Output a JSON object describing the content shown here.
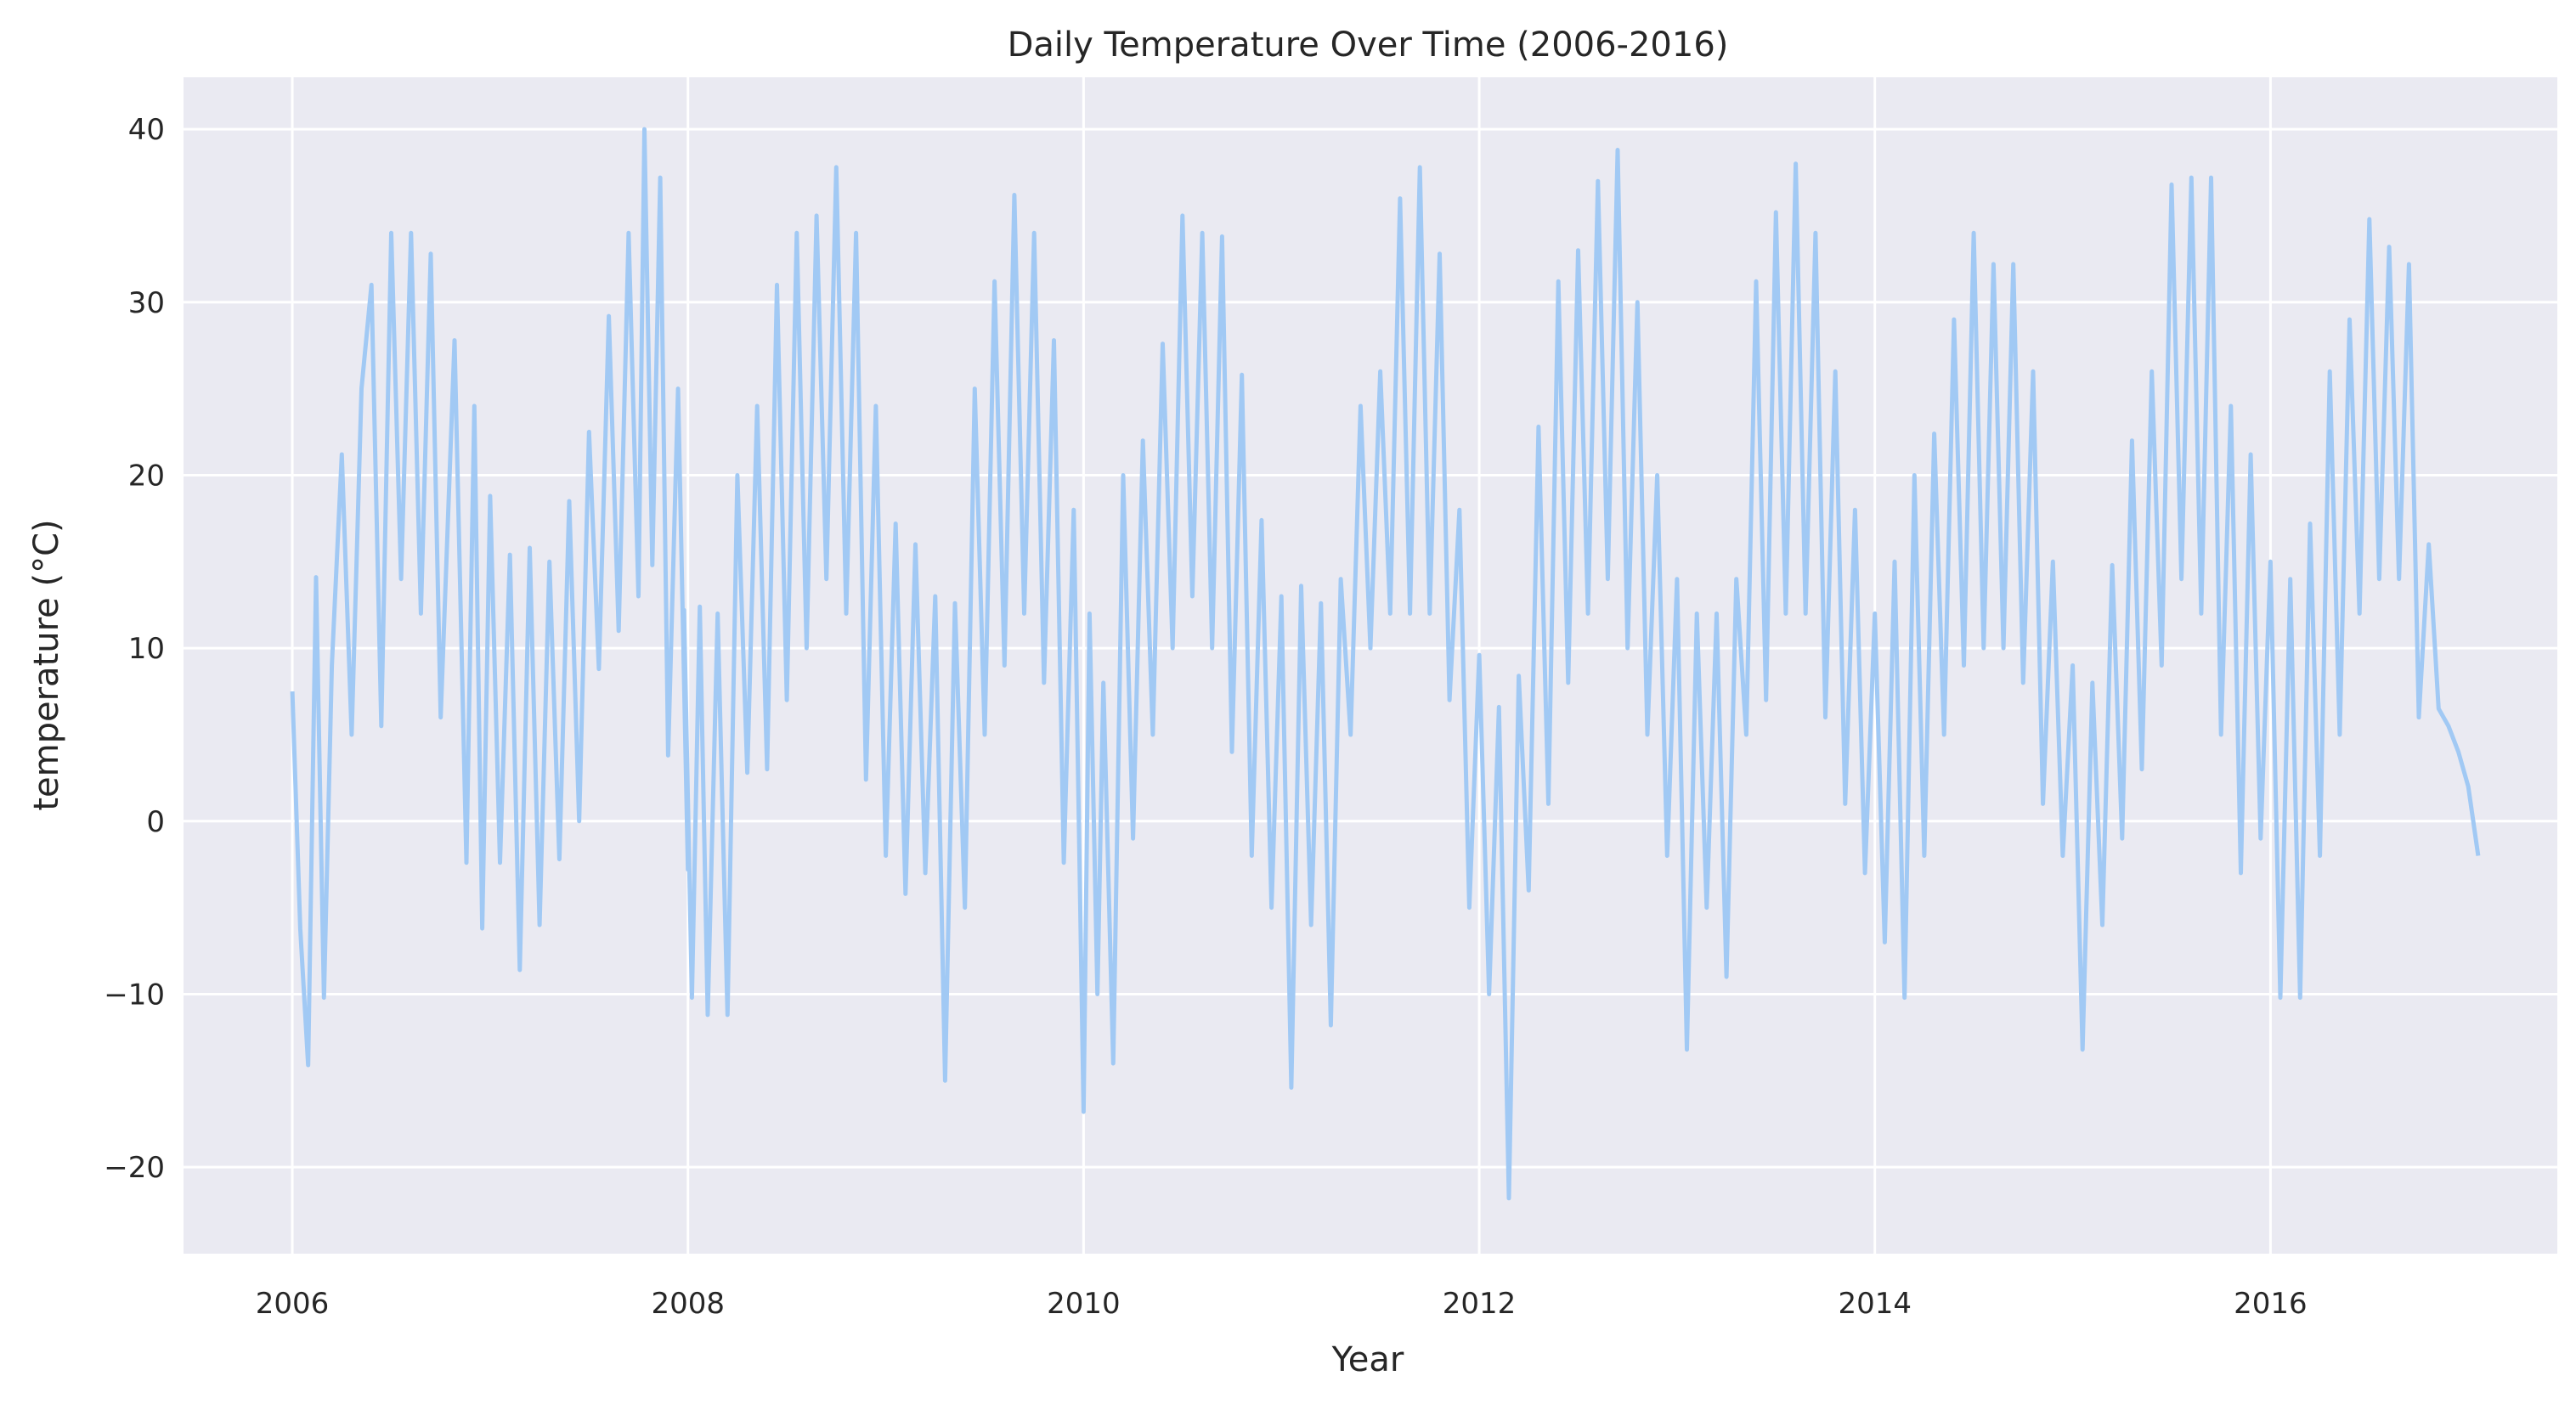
{
  "chart_data": {
    "type": "line",
    "title": "Daily Temperature Over Time (2006-2016)",
    "xlabel": "Year",
    "ylabel": "temperature (°C)",
    "xlim": [
      2005.45,
      2017.45
    ],
    "ylim": [
      -25,
      43
    ],
    "xticks": [
      2006,
      2008,
      2010,
      2012,
      2014,
      2016
    ],
    "xtick_labels": [
      "2006",
      "2008",
      "2010",
      "2012",
      "2014",
      "2016"
    ],
    "yticks": [
      -20,
      -10,
      0,
      10,
      20,
      30,
      40
    ],
    "ytick_labels": [
      "−20",
      "−10",
      "0",
      "10",
      "20",
      "30",
      "40"
    ],
    "grid": true,
    "series": [
      {
        "color": "#a1c9f4",
        "points": [
          [
            2006.0,
            7.5
          ],
          [
            2006.04,
            -6.2
          ],
          [
            2006.08,
            -14.1
          ],
          [
            2006.12,
            14.1
          ],
          [
            2006.16,
            -10.2
          ],
          [
            2006.2,
            9.0
          ],
          [
            2006.25,
            21.2
          ],
          [
            2006.3,
            5.0
          ],
          [
            2006.35,
            25.0
          ],
          [
            2006.4,
            31.0
          ],
          [
            2006.45,
            5.5
          ],
          [
            2006.5,
            34.0
          ],
          [
            2006.55,
            14.0
          ],
          [
            2006.6,
            34.0
          ],
          [
            2006.65,
            12.0
          ],
          [
            2006.7,
            32.8
          ],
          [
            2006.75,
            6.0
          ],
          [
            2006.82,
            27.8
          ],
          [
            2006.88,
            -2.4
          ],
          [
            2006.92,
            24.0
          ],
          [
            2006.96,
            -6.2
          ],
          [
            2007.0,
            18.8
          ],
          [
            2007.05,
            -2.4
          ],
          [
            2007.1,
            15.4
          ],
          [
            2007.15,
            -8.6
          ],
          [
            2007.2,
            15.8
          ],
          [
            2007.25,
            -6.0
          ],
          [
            2007.3,
            15.0
          ],
          [
            2007.35,
            -2.2
          ],
          [
            2007.4,
            18.5
          ],
          [
            2007.45,
            0.0
          ],
          [
            2007.5,
            22.5
          ],
          [
            2007.55,
            8.8
          ],
          [
            2007.6,
            29.2
          ],
          [
            2007.65,
            11.0
          ],
          [
            2007.7,
            34.0
          ],
          [
            2007.75,
            13.0
          ],
          [
            2007.78,
            40.0
          ],
          [
            2007.82,
            14.8
          ],
          [
            2007.86,
            37.2
          ],
          [
            2007.9,
            3.8
          ],
          [
            2007.95,
            25.0
          ],
          [
            2008.0,
            -2.8
          ],
          [
            2007.98,
            12.2
          ],
          [
            2008.02,
            -10.2
          ],
          [
            2008.06,
            12.4
          ],
          [
            2008.1,
            -11.2
          ],
          [
            2008.15,
            12.0
          ],
          [
            2008.2,
            -11.2
          ],
          [
            2008.25,
            20.0
          ],
          [
            2008.3,
            2.8
          ],
          [
            2008.35,
            24.0
          ],
          [
            2008.4,
            3.0
          ],
          [
            2008.45,
            31.0
          ],
          [
            2008.5,
            7.0
          ],
          [
            2008.55,
            34.0
          ],
          [
            2008.6,
            10.0
          ],
          [
            2008.65,
            35.0
          ],
          [
            2008.7,
            14.0
          ],
          [
            2008.75,
            37.8
          ],
          [
            2008.8,
            12.0
          ],
          [
            2008.85,
            34.0
          ],
          [
            2008.9,
            2.4
          ],
          [
            2008.95,
            24.0
          ],
          [
            2009.0,
            -2.0
          ],
          [
            2009.05,
            17.2
          ],
          [
            2009.1,
            -4.2
          ],
          [
            2009.15,
            16.0
          ],
          [
            2009.2,
            -3.0
          ],
          [
            2009.25,
            13.0
          ],
          [
            2009.3,
            -15.0
          ],
          [
            2009.35,
            12.6
          ],
          [
            2009.4,
            -5.0
          ],
          [
            2009.45,
            25.0
          ],
          [
            2009.5,
            5.0
          ],
          [
            2009.55,
            31.2
          ],
          [
            2009.6,
            9.0
          ],
          [
            2009.65,
            36.2
          ],
          [
            2009.7,
            12.0
          ],
          [
            2009.75,
            34.0
          ],
          [
            2009.8,
            8.0
          ],
          [
            2009.85,
            27.8
          ],
          [
            2009.9,
            -2.4
          ],
          [
            2009.95,
            18.0
          ],
          [
            2010.0,
            -16.8
          ],
          [
            2010.03,
            12.0
          ],
          [
            2010.07,
            -10.0
          ],
          [
            2010.1,
            8.0
          ],
          [
            2010.15,
            -14.0
          ],
          [
            2010.2,
            20.0
          ],
          [
            2010.25,
            -1.0
          ],
          [
            2010.3,
            22.0
          ],
          [
            2010.35,
            5.0
          ],
          [
            2010.4,
            27.6
          ],
          [
            2010.45,
            10.0
          ],
          [
            2010.5,
            35.0
          ],
          [
            2010.55,
            13.0
          ],
          [
            2010.6,
            34.0
          ],
          [
            2010.65,
            10.0
          ],
          [
            2010.7,
            33.8
          ],
          [
            2010.75,
            4.0
          ],
          [
            2010.8,
            25.8
          ],
          [
            2010.85,
            -2.0
          ],
          [
            2010.9,
            17.4
          ],
          [
            2010.95,
            -5.0
          ],
          [
            2011.0,
            13.0
          ],
          [
            2011.05,
            -15.4
          ],
          [
            2011.1,
            13.6
          ],
          [
            2011.15,
            -6.0
          ],
          [
            2011.2,
            12.6
          ],
          [
            2011.25,
            -11.8
          ],
          [
            2011.3,
            14.0
          ],
          [
            2011.35,
            5.0
          ],
          [
            2011.4,
            24.0
          ],
          [
            2011.45,
            10.0
          ],
          [
            2011.5,
            26.0
          ],
          [
            2011.55,
            12.0
          ],
          [
            2011.6,
            36.0
          ],
          [
            2011.65,
            12.0
          ],
          [
            2011.7,
            37.8
          ],
          [
            2011.75,
            12.0
          ],
          [
            2011.8,
            32.8
          ],
          [
            2011.85,
            7.0
          ],
          [
            2011.9,
            18.0
          ],
          [
            2011.95,
            -5.0
          ],
          [
            2012.0,
            9.6
          ],
          [
            2012.05,
            -10.0
          ],
          [
            2012.1,
            6.6
          ],
          [
            2012.15,
            -21.8
          ],
          [
            2012.2,
            8.4
          ],
          [
            2012.25,
            -4.0
          ],
          [
            2012.3,
            22.8
          ],
          [
            2012.35,
            1.0
          ],
          [
            2012.4,
            31.2
          ],
          [
            2012.45,
            8.0
          ],
          [
            2012.5,
            33.0
          ],
          [
            2012.55,
            12.0
          ],
          [
            2012.6,
            37.0
          ],
          [
            2012.65,
            14.0
          ],
          [
            2012.7,
            38.8
          ],
          [
            2012.75,
            10.0
          ],
          [
            2012.8,
            30.0
          ],
          [
            2012.85,
            5.0
          ],
          [
            2012.9,
            20.0
          ],
          [
            2012.95,
            -2.0
          ],
          [
            2013.0,
            14.0
          ],
          [
            2013.05,
            -13.2
          ],
          [
            2013.1,
            12.0
          ],
          [
            2013.15,
            -5.0
          ],
          [
            2013.2,
            12.0
          ],
          [
            2013.25,
            -9.0
          ],
          [
            2013.3,
            14.0
          ],
          [
            2013.35,
            5.0
          ],
          [
            2013.4,
            31.2
          ],
          [
            2013.45,
            7.0
          ],
          [
            2013.5,
            35.2
          ],
          [
            2013.55,
            12.0
          ],
          [
            2013.6,
            38.0
          ],
          [
            2013.65,
            12.0
          ],
          [
            2013.7,
            34.0
          ],
          [
            2013.75,
            6.0
          ],
          [
            2013.8,
            26.0
          ],
          [
            2013.85,
            1.0
          ],
          [
            2013.9,
            18.0
          ],
          [
            2013.95,
            -3.0
          ],
          [
            2014.0,
            12.0
          ],
          [
            2014.05,
            -7.0
          ],
          [
            2014.1,
            15.0
          ],
          [
            2014.15,
            -10.2
          ],
          [
            2014.2,
            20.0
          ],
          [
            2014.25,
            -2.0
          ],
          [
            2014.3,
            22.4
          ],
          [
            2014.35,
            5.0
          ],
          [
            2014.4,
            29.0
          ],
          [
            2014.45,
            9.0
          ],
          [
            2014.5,
            34.0
          ],
          [
            2014.55,
            10.0
          ],
          [
            2014.6,
            32.2
          ],
          [
            2014.65,
            10.0
          ],
          [
            2014.7,
            32.2
          ],
          [
            2014.75,
            8.0
          ],
          [
            2014.8,
            26.0
          ],
          [
            2014.85,
            1.0
          ],
          [
            2014.9,
            15.0
          ],
          [
            2014.95,
            -2.0
          ],
          [
            2015.0,
            9.0
          ],
          [
            2015.05,
            -13.2
          ],
          [
            2015.1,
            8.0
          ],
          [
            2015.15,
            -6.0
          ],
          [
            2015.2,
            14.8
          ],
          [
            2015.25,
            -1.0
          ],
          [
            2015.3,
            22.0
          ],
          [
            2015.35,
            3.0
          ],
          [
            2015.4,
            26.0
          ],
          [
            2015.45,
            9.0
          ],
          [
            2015.5,
            36.8
          ],
          [
            2015.55,
            14.0
          ],
          [
            2015.6,
            37.2
          ],
          [
            2015.65,
            12.0
          ],
          [
            2015.7,
            37.2
          ],
          [
            2015.75,
            5.0
          ],
          [
            2015.8,
            24.0
          ],
          [
            2015.85,
            -3.0
          ],
          [
            2015.9,
            21.2
          ],
          [
            2015.95,
            -1.0
          ],
          [
            2016.0,
            15.0
          ],
          [
            2016.05,
            -10.2
          ],
          [
            2016.1,
            14.0
          ],
          [
            2016.15,
            -10.2
          ],
          [
            2016.2,
            17.2
          ],
          [
            2016.25,
            -2.0
          ],
          [
            2016.3,
            26.0
          ],
          [
            2016.35,
            5.0
          ],
          [
            2016.4,
            29.0
          ],
          [
            2016.45,
            12.0
          ],
          [
            2016.5,
            34.8
          ],
          [
            2016.55,
            14.0
          ],
          [
            2016.6,
            33.2
          ],
          [
            2016.65,
            14.0
          ],
          [
            2016.7,
            32.2
          ],
          [
            2016.75,
            6.0
          ],
          [
            2016.8,
            16.0
          ],
          [
            2016.85,
            6.5
          ],
          [
            2016.9,
            5.5
          ],
          [
            2016.95,
            4.0
          ],
          [
            2017.0,
            2.0
          ],
          [
            2017.05,
            -2.0
          ]
        ]
      }
    ]
  }
}
